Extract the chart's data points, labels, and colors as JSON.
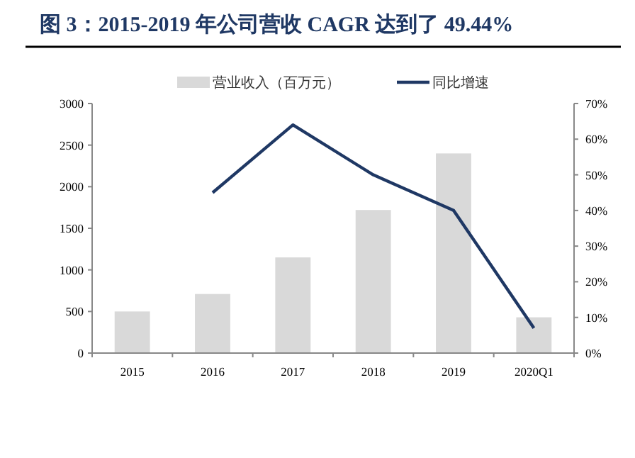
{
  "chart_data": {
    "type": "bar",
    "title": "图 3：2015-2019 年公司营收 CAGR 达到了 49.44%",
    "categories": [
      "2015",
      "2016",
      "2017",
      "2018",
      "2019",
      "2020Q1"
    ],
    "series": [
      {
        "name": "营业收入（百万元）",
        "color": "#d9d9d9",
        "values": [
          500,
          710,
          1150,
          1720,
          2400,
          430
        ]
      },
      {
        "name": "同比增速",
        "type": "line",
        "axis": "y2",
        "color": "#1f3864",
        "values": [
          null,
          45,
          64,
          50,
          40,
          7
        ]
      }
    ],
    "ylim": [
      0,
      3000
    ],
    "yticks": [
      0,
      500,
      1000,
      1500,
      2000,
      2500,
      3000
    ],
    "y2lim": [
      0,
      70
    ],
    "y2ticks": [
      {
        "value": 0,
        "label": "0%"
      },
      {
        "value": 10,
        "label": "10%"
      },
      {
        "value": 20,
        "label": "20%"
      },
      {
        "value": 30,
        "label": "30%"
      },
      {
        "value": 40,
        "label": "40%"
      },
      {
        "value": 50,
        "label": "50%"
      },
      {
        "value": 60,
        "label": "60%"
      },
      {
        "value": 70,
        "label": "70%"
      }
    ],
    "legend": "top",
    "marker": "none",
    "line_style": "solid"
  }
}
